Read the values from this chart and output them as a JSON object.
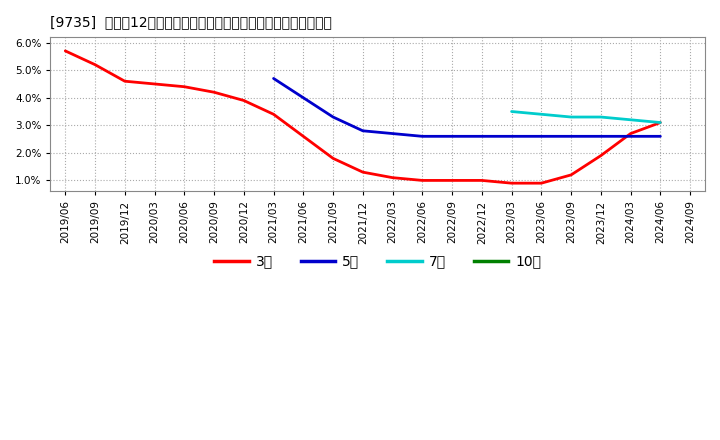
{
  "title": "[9735]  売上高12か月移動合計の対前年同期増減率の平均値の推移",
  "background_color": "#ffffff",
  "plot_bg_color": "#ffffff",
  "grid_color": "#aaaaaa",
  "ylim_min": 0.006,
  "ylim_max": 0.062,
  "yticks": [
    0.01,
    0.02,
    0.03,
    0.04,
    0.05,
    0.06
  ],
  "series": {
    "3年": {
      "color": "#ff0000",
      "x": [
        "2019/06",
        "2019/09",
        "2019/12",
        "2020/03",
        "2020/06",
        "2020/09",
        "2020/12",
        "2021/03",
        "2021/06",
        "2021/09",
        "2021/12",
        "2022/03",
        "2022/06",
        "2022/09",
        "2022/12",
        "2023/03",
        "2023/06",
        "2023/09",
        "2023/12",
        "2024/03",
        "2024/06"
      ],
      "y": [
        0.057,
        0.052,
        0.046,
        0.045,
        0.044,
        0.042,
        0.039,
        0.034,
        0.026,
        0.018,
        0.013,
        0.011,
        0.01,
        0.01,
        0.01,
        0.009,
        0.009,
        0.012,
        0.019,
        0.027,
        0.031
      ]
    },
    "5年": {
      "color": "#0000cc",
      "x": [
        "2021/03",
        "2021/06",
        "2021/09",
        "2021/12",
        "2022/03",
        "2022/06",
        "2022/09",
        "2022/12",
        "2023/03",
        "2023/06",
        "2023/09",
        "2023/12",
        "2024/03",
        "2024/06"
      ],
      "y": [
        0.047,
        0.04,
        0.033,
        0.028,
        0.027,
        0.026,
        0.026,
        0.026,
        0.026,
        0.026,
        0.026,
        0.026,
        0.026,
        0.026
      ]
    },
    "7年": {
      "color": "#00cccc",
      "x": [
        "2023/03",
        "2023/06",
        "2023/09",
        "2023/12",
        "2024/03",
        "2024/06"
      ],
      "y": [
        0.035,
        0.034,
        0.033,
        0.033,
        0.032,
        0.031
      ]
    },
    "10年": {
      "color": "#008000",
      "x": [],
      "y": []
    }
  },
  "x_labels": [
    "2019/06",
    "2019/09",
    "2019/12",
    "2020/03",
    "2020/06",
    "2020/09",
    "2020/12",
    "2021/03",
    "2021/06",
    "2021/09",
    "2021/12",
    "2022/03",
    "2022/06",
    "2022/09",
    "2022/12",
    "2023/03",
    "2023/06",
    "2023/09",
    "2023/12",
    "2024/03",
    "2024/06",
    "2024/09"
  ],
  "legend_labels": [
    "3年",
    "5年",
    "7年",
    "10年"
  ],
  "legend_colors": [
    "#ff0000",
    "#0000cc",
    "#00cccc",
    "#008000"
  ]
}
